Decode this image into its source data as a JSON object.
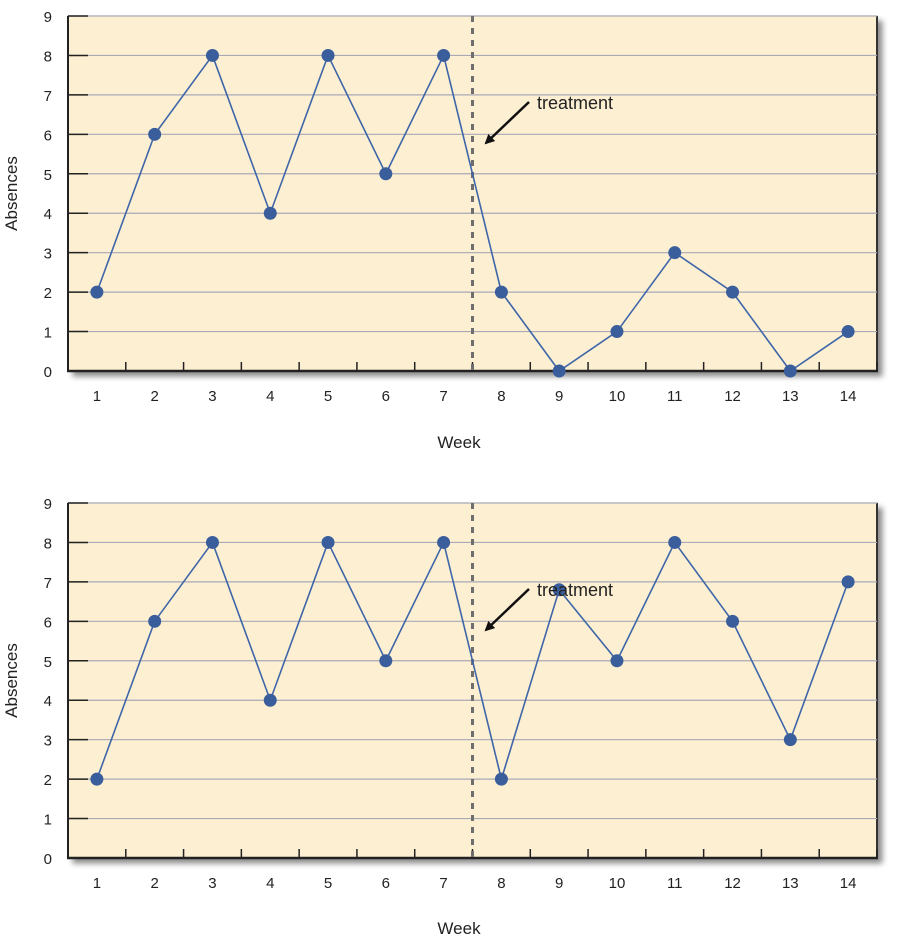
{
  "chart_data": [
    {
      "type": "line",
      "xlabel": "Week",
      "ylabel": "Absences",
      "categories": [
        "1",
        "2",
        "3",
        "4",
        "5",
        "6",
        "7",
        "8",
        "9",
        "10",
        "11",
        "12",
        "13",
        "14"
      ],
      "values": [
        2,
        6,
        8,
        4,
        8,
        5,
        8,
        2,
        0,
        1,
        3,
        2,
        0,
        1
      ],
      "ylim": [
        0,
        9
      ],
      "yticks": [
        "0",
        "1",
        "2",
        "3",
        "4",
        "5",
        "6",
        "7",
        "8",
        "9"
      ],
      "grid": true,
      "treatment_after_week": 7,
      "annotation": "treatment"
    },
    {
      "type": "line",
      "xlabel": "Week",
      "ylabel": "Absences",
      "categories": [
        "1",
        "2",
        "3",
        "4",
        "5",
        "6",
        "7",
        "8",
        "9",
        "10",
        "11",
        "12",
        "13",
        "14"
      ],
      "values": [
        2,
        6,
        8,
        4,
        8,
        5,
        8,
        2,
        6.8,
        5,
        8,
        6,
        3,
        7
      ],
      "ylim": [
        0,
        9
      ],
      "yticks": [
        "0",
        "1",
        "2",
        "3",
        "4",
        "5",
        "6",
        "7",
        "8",
        "9"
      ],
      "grid": true,
      "treatment_after_week": 7,
      "annotation": "treatment"
    }
  ],
  "colors": {
    "plot_background": "#fdefd2",
    "line": "#3e66a8",
    "marker": "#3a5e9c",
    "grid": "#a8aab6",
    "treatment_line": "#6e6e6e"
  }
}
